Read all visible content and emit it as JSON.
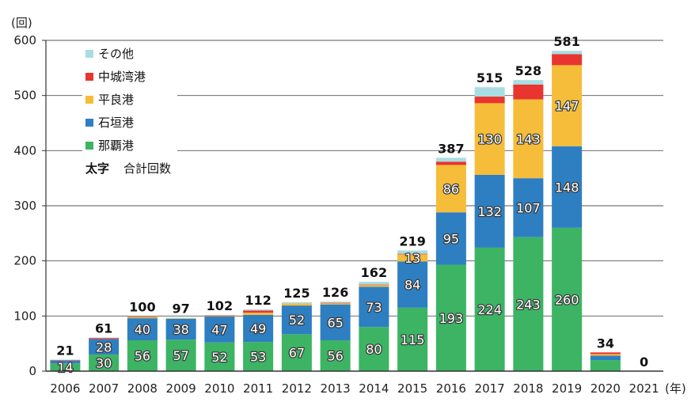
{
  "chart_data": {
    "type": "bar",
    "stacked": true,
    "y_unit_label": "(回)",
    "x_unit_label": "(年)",
    "ylim": [
      0,
      600
    ],
    "yticks": [
      0,
      100,
      200,
      300,
      400,
      500,
      600
    ],
    "grid": true,
    "legend_position": "top-left",
    "categories": [
      "2006",
      "2007",
      "2008",
      "2009",
      "2010",
      "2011",
      "2012",
      "2013",
      "2014",
      "2015",
      "2016",
      "2017",
      "2018",
      "2019",
      "2020",
      "2021"
    ],
    "series": [
      {
        "name": "那覇港",
        "color": "#3cb464",
        "values": [
          14,
          30,
          56,
          57,
          52,
          53,
          67,
          56,
          80,
          115,
          193,
          224,
          243,
          260,
          20,
          0
        ],
        "labels": [
          "14",
          "30",
          "56",
          "57",
          "52",
          "53",
          "67",
          "56",
          "80",
          "115",
          "193",
          "224",
          "243",
          "260",
          "",
          ""
        ]
      },
      {
        "name": "石垣港",
        "color": "#2e7fc2",
        "values": [
          5,
          28,
          40,
          38,
          47,
          49,
          52,
          65,
          73,
          84,
          95,
          132,
          107,
          148,
          8,
          0
        ],
        "labels": [
          "",
          "28",
          "40",
          "38",
          "47",
          "49",
          "52",
          "65",
          "73",
          "84",
          "95",
          "132",
          "107",
          "148",
          "",
          ""
        ]
      },
      {
        "name": "平良港",
        "color": "#f5bd39",
        "values": [
          0,
          0,
          2,
          1,
          1,
          4,
          4,
          2,
          3,
          13,
          86,
          130,
          143,
          147,
          3,
          0
        ],
        "labels": [
          "",
          "",
          "",
          "",
          "",
          "",
          "",
          "",
          "",
          "13",
          "86",
          "130",
          "143",
          "147",
          "",
          ""
        ]
      },
      {
        "name": "中城湾港",
        "color": "#e8352f",
        "values": [
          1,
          2,
          1,
          0,
          1,
          4,
          0,
          1,
          1,
          1,
          6,
          12,
          27,
          20,
          3,
          0
        ],
        "labels": [
          "",
          "",
          "",
          "",
          "",
          "",
          "",
          "",
          "",
          "",
          "",
          "",
          "",
          "",
          "",
          ""
        ]
      },
      {
        "name": "その他",
        "color": "#a8dde3",
        "values": [
          1,
          1,
          1,
          1,
          1,
          2,
          2,
          2,
          5,
          6,
          7,
          17,
          8,
          6,
          0,
          0
        ],
        "labels": [
          "",
          "",
          "",
          "",
          "",
          "",
          "",
          "",
          "",
          "",
          "",
          "",
          "",
          "",
          "",
          ""
        ]
      }
    ],
    "totals": [
      "21",
      "61",
      "100",
      "97",
      "102",
      "112",
      "125",
      "126",
      "162",
      "219",
      "387",
      "515",
      "528",
      "581",
      "34",
      "0"
    ],
    "totals_highlight": {
      "index": 15,
      "color": "#e8352f"
    },
    "legend_note_bold": "太字",
    "legend_note_text": "合計回数"
  }
}
